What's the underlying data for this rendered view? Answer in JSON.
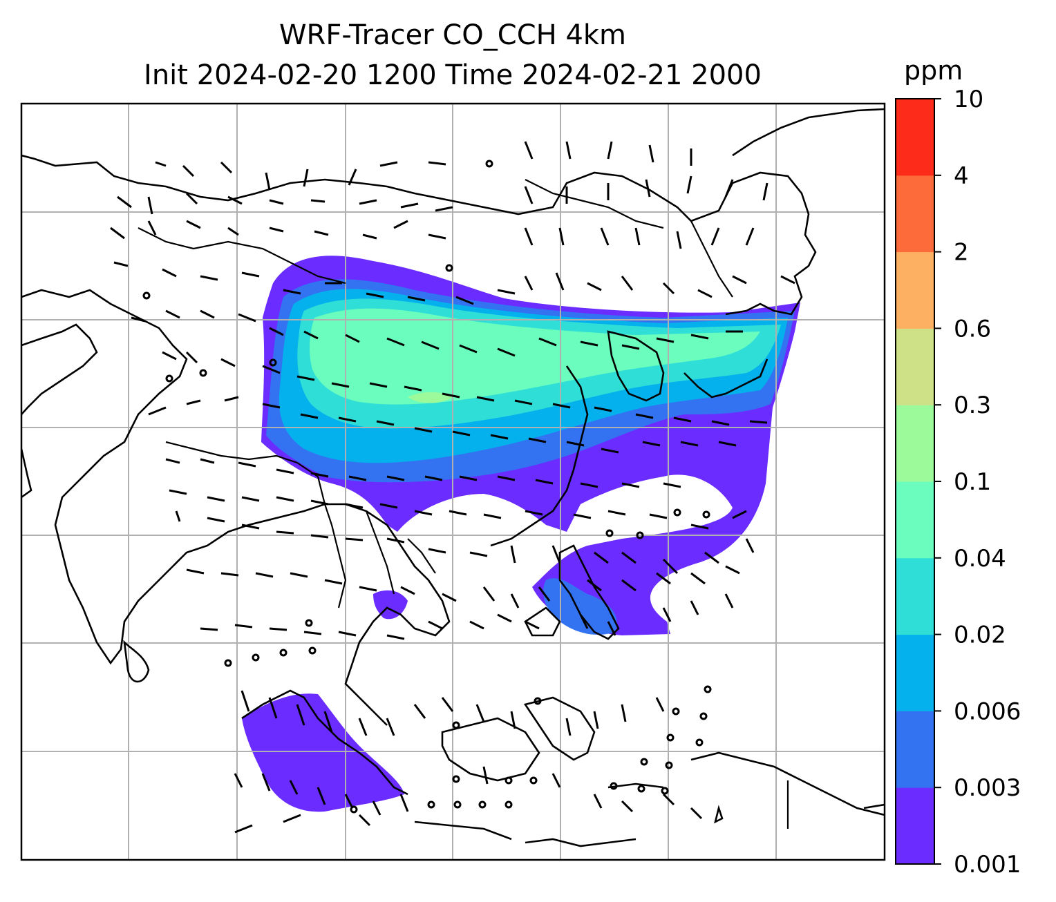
{
  "title": {
    "line1": "WRF-Tracer CO_CCH 4km",
    "line2": "Init 2024-02-20 1200 Time 2024-02-21 2000"
  },
  "colorbar": {
    "unit": "ppm",
    "levels": [
      "0.001",
      "0.003",
      "0.006",
      "0.02",
      "0.04",
      "0.1",
      "0.3",
      "0.6",
      "2",
      "4",
      "10"
    ],
    "colors": [
      "#6a2cff",
      "#3373f2",
      "#04b1ec",
      "#2fded6",
      "#6afdbd",
      "#9dfa9a",
      "#cfe186",
      "#fdb061",
      "#fd6b3a",
      "#fc2b1a"
    ]
  },
  "map": {
    "gridlines": true,
    "features": [
      "coastlines",
      "country-borders",
      "tracer-concentration-fill",
      "wind-barbs",
      "calm-wind-circles"
    ]
  }
}
